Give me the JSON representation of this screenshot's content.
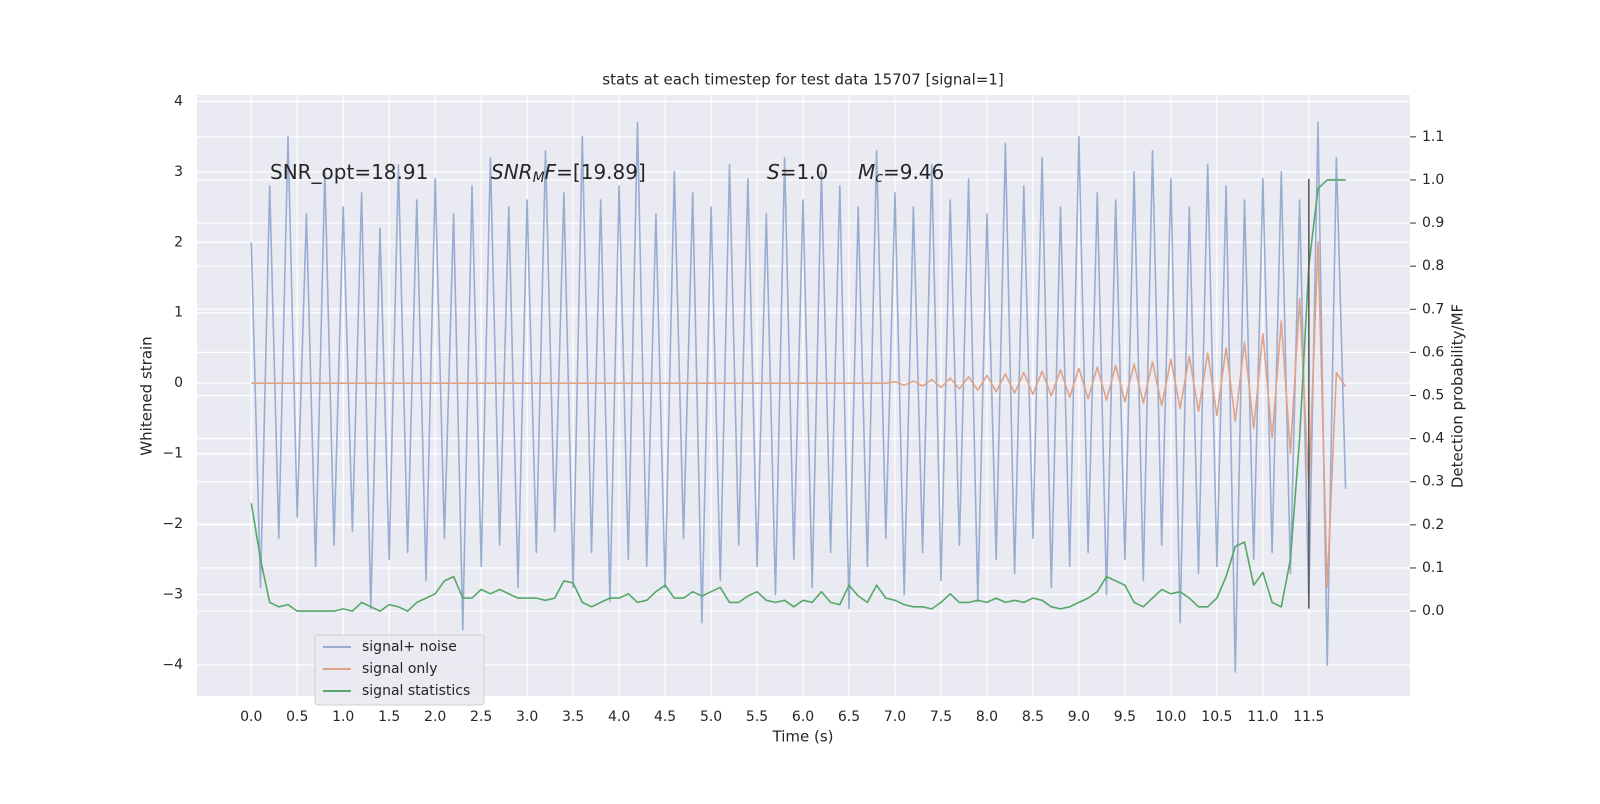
{
  "chart_data": {
    "type": "line",
    "title": "stats at each timestep for test data 15707 [signal=1]",
    "xlabel": "Time (s)",
    "ylabel": "Whitened strain",
    "y2label": "Detection probability/MF",
    "annotations": [
      [
        {
          "text": "SNR_opt=18.91",
          "style": "normal"
        }
      ],
      [
        {
          "text": "SNR",
          "style": "italic"
        },
        {
          "text": "M",
          "style": "sub"
        },
        {
          "text": "F",
          "style": "italic"
        },
        {
          "text": "=[19.89]",
          "style": "normal"
        }
      ],
      [
        {
          "text": "S",
          "style": "italic"
        },
        {
          "text": "=1.0",
          "style": "normal"
        }
      ],
      [
        {
          "text": "M",
          "style": "italic"
        },
        {
          "text": "c",
          "style": "sub"
        },
        {
          "text": "=9.46",
          "style": "normal"
        }
      ]
    ],
    "x": [
      0.0,
      0.1,
      0.2,
      0.3,
      0.4,
      0.5,
      0.6,
      0.7,
      0.8,
      0.9,
      1.0,
      1.1,
      1.2,
      1.3,
      1.4,
      1.5,
      1.6,
      1.7,
      1.8,
      1.9,
      2.0,
      2.1,
      2.2,
      2.3,
      2.4,
      2.5,
      2.6,
      2.7,
      2.8,
      2.9,
      3.0,
      3.1,
      3.2,
      3.3,
      3.4,
      3.5,
      3.6,
      3.7,
      3.8,
      3.9,
      4.0,
      4.1,
      4.2,
      4.3,
      4.4,
      4.5,
      4.6,
      4.7,
      4.8,
      4.9,
      5.0,
      5.1,
      5.2,
      5.3,
      5.4,
      5.5,
      5.6,
      5.7,
      5.8,
      5.9,
      6.0,
      6.1,
      6.2,
      6.3,
      6.4,
      6.5,
      6.6,
      6.7,
      6.8,
      6.9,
      7.0,
      7.1,
      7.2,
      7.3,
      7.4,
      7.5,
      7.6,
      7.7,
      7.8,
      7.9,
      8.0,
      8.1,
      8.2,
      8.3,
      8.4,
      8.5,
      8.6,
      8.7,
      8.8,
      8.9,
      9.0,
      9.1,
      9.2,
      9.3,
      9.4,
      9.5,
      9.6,
      9.7,
      9.8,
      9.9,
      10.0,
      10.1,
      10.2,
      10.3,
      10.4,
      10.5,
      10.6,
      10.7,
      10.8,
      10.9,
      11.0,
      11.1,
      11.2,
      11.3,
      11.4,
      11.5,
      11.6,
      11.7,
      11.8,
      11.9
    ],
    "series": [
      {
        "name": "signal+ noise",
        "color": "#99add1",
        "values": [
          2.0,
          -2.9,
          2.8,
          -2.2,
          3.5,
          -1.9,
          2.4,
          -2.6,
          3.0,
          -2.3,
          2.5,
          -2.1,
          2.7,
          -3.2,
          2.2,
          -2.5,
          3.1,
          -2.4,
          2.6,
          -2.8,
          2.9,
          -2.2,
          2.4,
          -3.5,
          2.8,
          -2.6,
          3.2,
          -2.3,
          2.5,
          -2.9,
          2.6,
          -2.4,
          3.3,
          -2.1,
          2.7,
          -2.9,
          3.5,
          -2.4,
          2.6,
          -3.1,
          2.8,
          -2.5,
          3.7,
          -2.6,
          2.4,
          -2.9,
          3.0,
          -2.2,
          2.7,
          -3.4,
          2.5,
          -2.8,
          3.1,
          -2.3,
          2.9,
          -2.6,
          2.4,
          -3.0,
          3.2,
          -2.5,
          2.6,
          -2.9,
          3.0,
          -2.4,
          2.8,
          -3.2,
          2.5,
          -2.6,
          3.3,
          -2.2,
          2.7,
          -3.0,
          2.5,
          -2.4,
          3.1,
          -2.8,
          2.6,
          -2.3,
          2.9,
          -3.1,
          2.4,
          -2.5,
          3.4,
          -2.7,
          2.8,
          -2.2,
          3.2,
          -2.9,
          2.5,
          -2.6,
          3.5,
          -2.4,
          2.7,
          -3.0,
          2.6,
          -2.5,
          3.0,
          -2.8,
          3.3,
          -2.3,
          2.9,
          -3.4,
          2.5,
          -2.7,
          3.1,
          -2.6,
          2.8,
          -4.1,
          2.6,
          -2.5,
          2.9,
          -2.4,
          3.0,
          -2.7,
          2.6,
          -3.1,
          3.7,
          -4.0,
          3.2,
          -1.5
        ]
      },
      {
        "name": "signal only",
        "color": "#e0a387",
        "values": [
          0,
          0,
          0,
          0,
          0,
          0,
          0,
          0,
          0,
          0,
          0,
          0,
          0,
          0,
          0,
          0,
          0,
          0,
          0,
          0,
          0,
          0,
          0,
          0,
          0,
          0,
          0,
          0,
          0,
          0,
          0,
          0,
          0,
          0,
          0,
          0,
          0,
          0,
          0,
          0,
          0,
          0,
          0,
          0,
          0,
          0,
          0,
          0,
          0,
          0,
          0,
          0,
          0,
          0,
          0,
          0,
          0,
          0,
          0,
          0,
          0,
          0,
          0,
          0,
          0,
          0,
          0,
          0,
          0,
          0,
          0.02,
          -0.03,
          0.03,
          -0.04,
          0.05,
          -0.06,
          0.07,
          -0.08,
          0.09,
          -0.1,
          0.11,
          -0.12,
          0.13,
          -0.14,
          0.15,
          -0.16,
          0.17,
          -0.18,
          0.19,
          -0.2,
          0.21,
          -0.22,
          0.23,
          -0.24,
          0.25,
          -0.26,
          0.27,
          -0.28,
          0.3,
          -0.32,
          0.34,
          -0.36,
          0.38,
          -0.4,
          0.43,
          -0.46,
          0.5,
          -0.54,
          0.58,
          -0.64,
          0.7,
          -0.78,
          0.88,
          -1.0,
          1.2,
          -1.5,
          2.0,
          -2.9,
          0.15,
          -0.05
        ]
      },
      {
        "name": "signal statistics",
        "color": "#55a868",
        "axis": "y2",
        "values": [
          0.25,
          0.12,
          0.02,
          0.01,
          0.015,
          0.0,
          0.0,
          0.0,
          0.0,
          0.0,
          0.005,
          0.0,
          0.02,
          0.01,
          0.0,
          0.015,
          0.01,
          0.0,
          0.02,
          0.03,
          0.04,
          0.07,
          0.08,
          0.03,
          0.03,
          0.05,
          0.04,
          0.05,
          0.04,
          0.03,
          0.03,
          0.03,
          0.025,
          0.03,
          0.07,
          0.065,
          0.02,
          0.01,
          0.02,
          0.03,
          0.03,
          0.04,
          0.02,
          0.025,
          0.045,
          0.06,
          0.03,
          0.03,
          0.045,
          0.035,
          0.045,
          0.055,
          0.02,
          0.02,
          0.035,
          0.045,
          0.025,
          0.02,
          0.025,
          0.01,
          0.025,
          0.02,
          0.045,
          0.02,
          0.015,
          0.06,
          0.035,
          0.02,
          0.06,
          0.03,
          0.025,
          0.015,
          0.01,
          0.01,
          0.005,
          0.02,
          0.04,
          0.02,
          0.02,
          0.025,
          0.02,
          0.03,
          0.02,
          0.025,
          0.02,
          0.03,
          0.025,
          0.01,
          0.005,
          0.01,
          0.02,
          0.03,
          0.045,
          0.08,
          0.07,
          0.06,
          0.02,
          0.01,
          0.03,
          0.05,
          0.04,
          0.045,
          0.03,
          0.01,
          0.01,
          0.03,
          0.08,
          0.15,
          0.16,
          0.06,
          0.09,
          0.02,
          0.01,
          0.12,
          0.4,
          0.8,
          0.98,
          1.0,
          1.0,
          1.0
        ]
      }
    ],
    "marker_line": {
      "x": 11.5,
      "y": [
        -3.2,
        2.9
      ],
      "color": "#555555"
    },
    "xlim": [
      -0.59,
      12.6
    ],
    "ylim": [
      -4.44,
      4.09
    ],
    "y2lim": [
      -0.197,
      1.197
    ],
    "xticks": [
      {
        "value": 0,
        "label": "0.0"
      },
      0.5,
      {
        "value": 1,
        "label": "1.0"
      },
      1.5,
      {
        "value": 2,
        "label": "2.0"
      },
      2.5,
      {
        "value": 3,
        "label": "3.0"
      },
      3.5,
      {
        "value": 4,
        "label": "4.0"
      },
      4.5,
      {
        "value": 5,
        "label": "5.0"
      },
      5.5,
      {
        "value": 6,
        "label": "6.0"
      },
      6.5,
      {
        "value": 7,
        "label": "7.0"
      },
      7.5,
      {
        "value": 8,
        "label": "8.0"
      },
      8.5,
      {
        "value": 9,
        "label": "9.0"
      },
      9.5,
      {
        "value": 10,
        "label": "10.0"
      },
      10.5,
      {
        "value": 11,
        "label": "11.0"
      },
      11.5
    ],
    "yticks": [
      {
        "value": -4,
        "label": "−4"
      },
      {
        "value": -3,
        "label": "−3"
      },
      {
        "value": -2,
        "label": "−2"
      },
      {
        "value": -1,
        "label": "−1"
      },
      0,
      1,
      2,
      3,
      4
    ],
    "y2ticks": [
      {
        "value": 0,
        "label": "0.0"
      },
      0.1,
      0.2,
      0.3,
      0.4,
      0.5,
      0.6,
      0.7,
      0.8,
      0.9,
      {
        "value": 1,
        "label": "1.0"
      },
      1.1
    ],
    "grid": true,
    "background": "#eaeaf2",
    "legend": "lower left"
  }
}
